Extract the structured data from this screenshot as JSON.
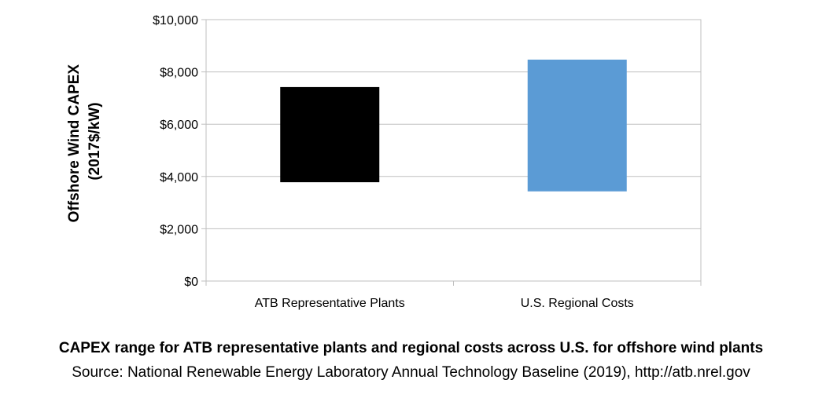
{
  "chart_data": {
    "type": "bar",
    "subtype": "floating-range",
    "ylabel_lines": [
      "Offshore Wind CAPEX",
      "(2017$/kW)"
    ],
    "xlabel": "",
    "ylim": [
      0,
      10000
    ],
    "yticks": [
      0,
      2000,
      4000,
      6000,
      8000,
      10000
    ],
    "ytick_labels": [
      "$0",
      "$2,000",
      "$4,000",
      "$6,000",
      "$8,000",
      "$10,000"
    ],
    "grid": true,
    "categories": [
      "ATB Representative Plants",
      "U.S. Regional Costs"
    ],
    "ranges": [
      {
        "category": "ATB Representative Plants",
        "low": 3780,
        "high": 7420,
        "color": "#000000"
      },
      {
        "category": "U.S. Regional Costs",
        "low": 3430,
        "high": 8470,
        "color": "#5B9BD5"
      }
    ]
  },
  "caption": {
    "title": "CAPEX range for ATB representative plants and regional costs across U.S. for offshore wind plants",
    "source": "Source: National Renewable Energy Laboratory Annual Technology Baseline (2019), http://atb.nrel.gov"
  }
}
